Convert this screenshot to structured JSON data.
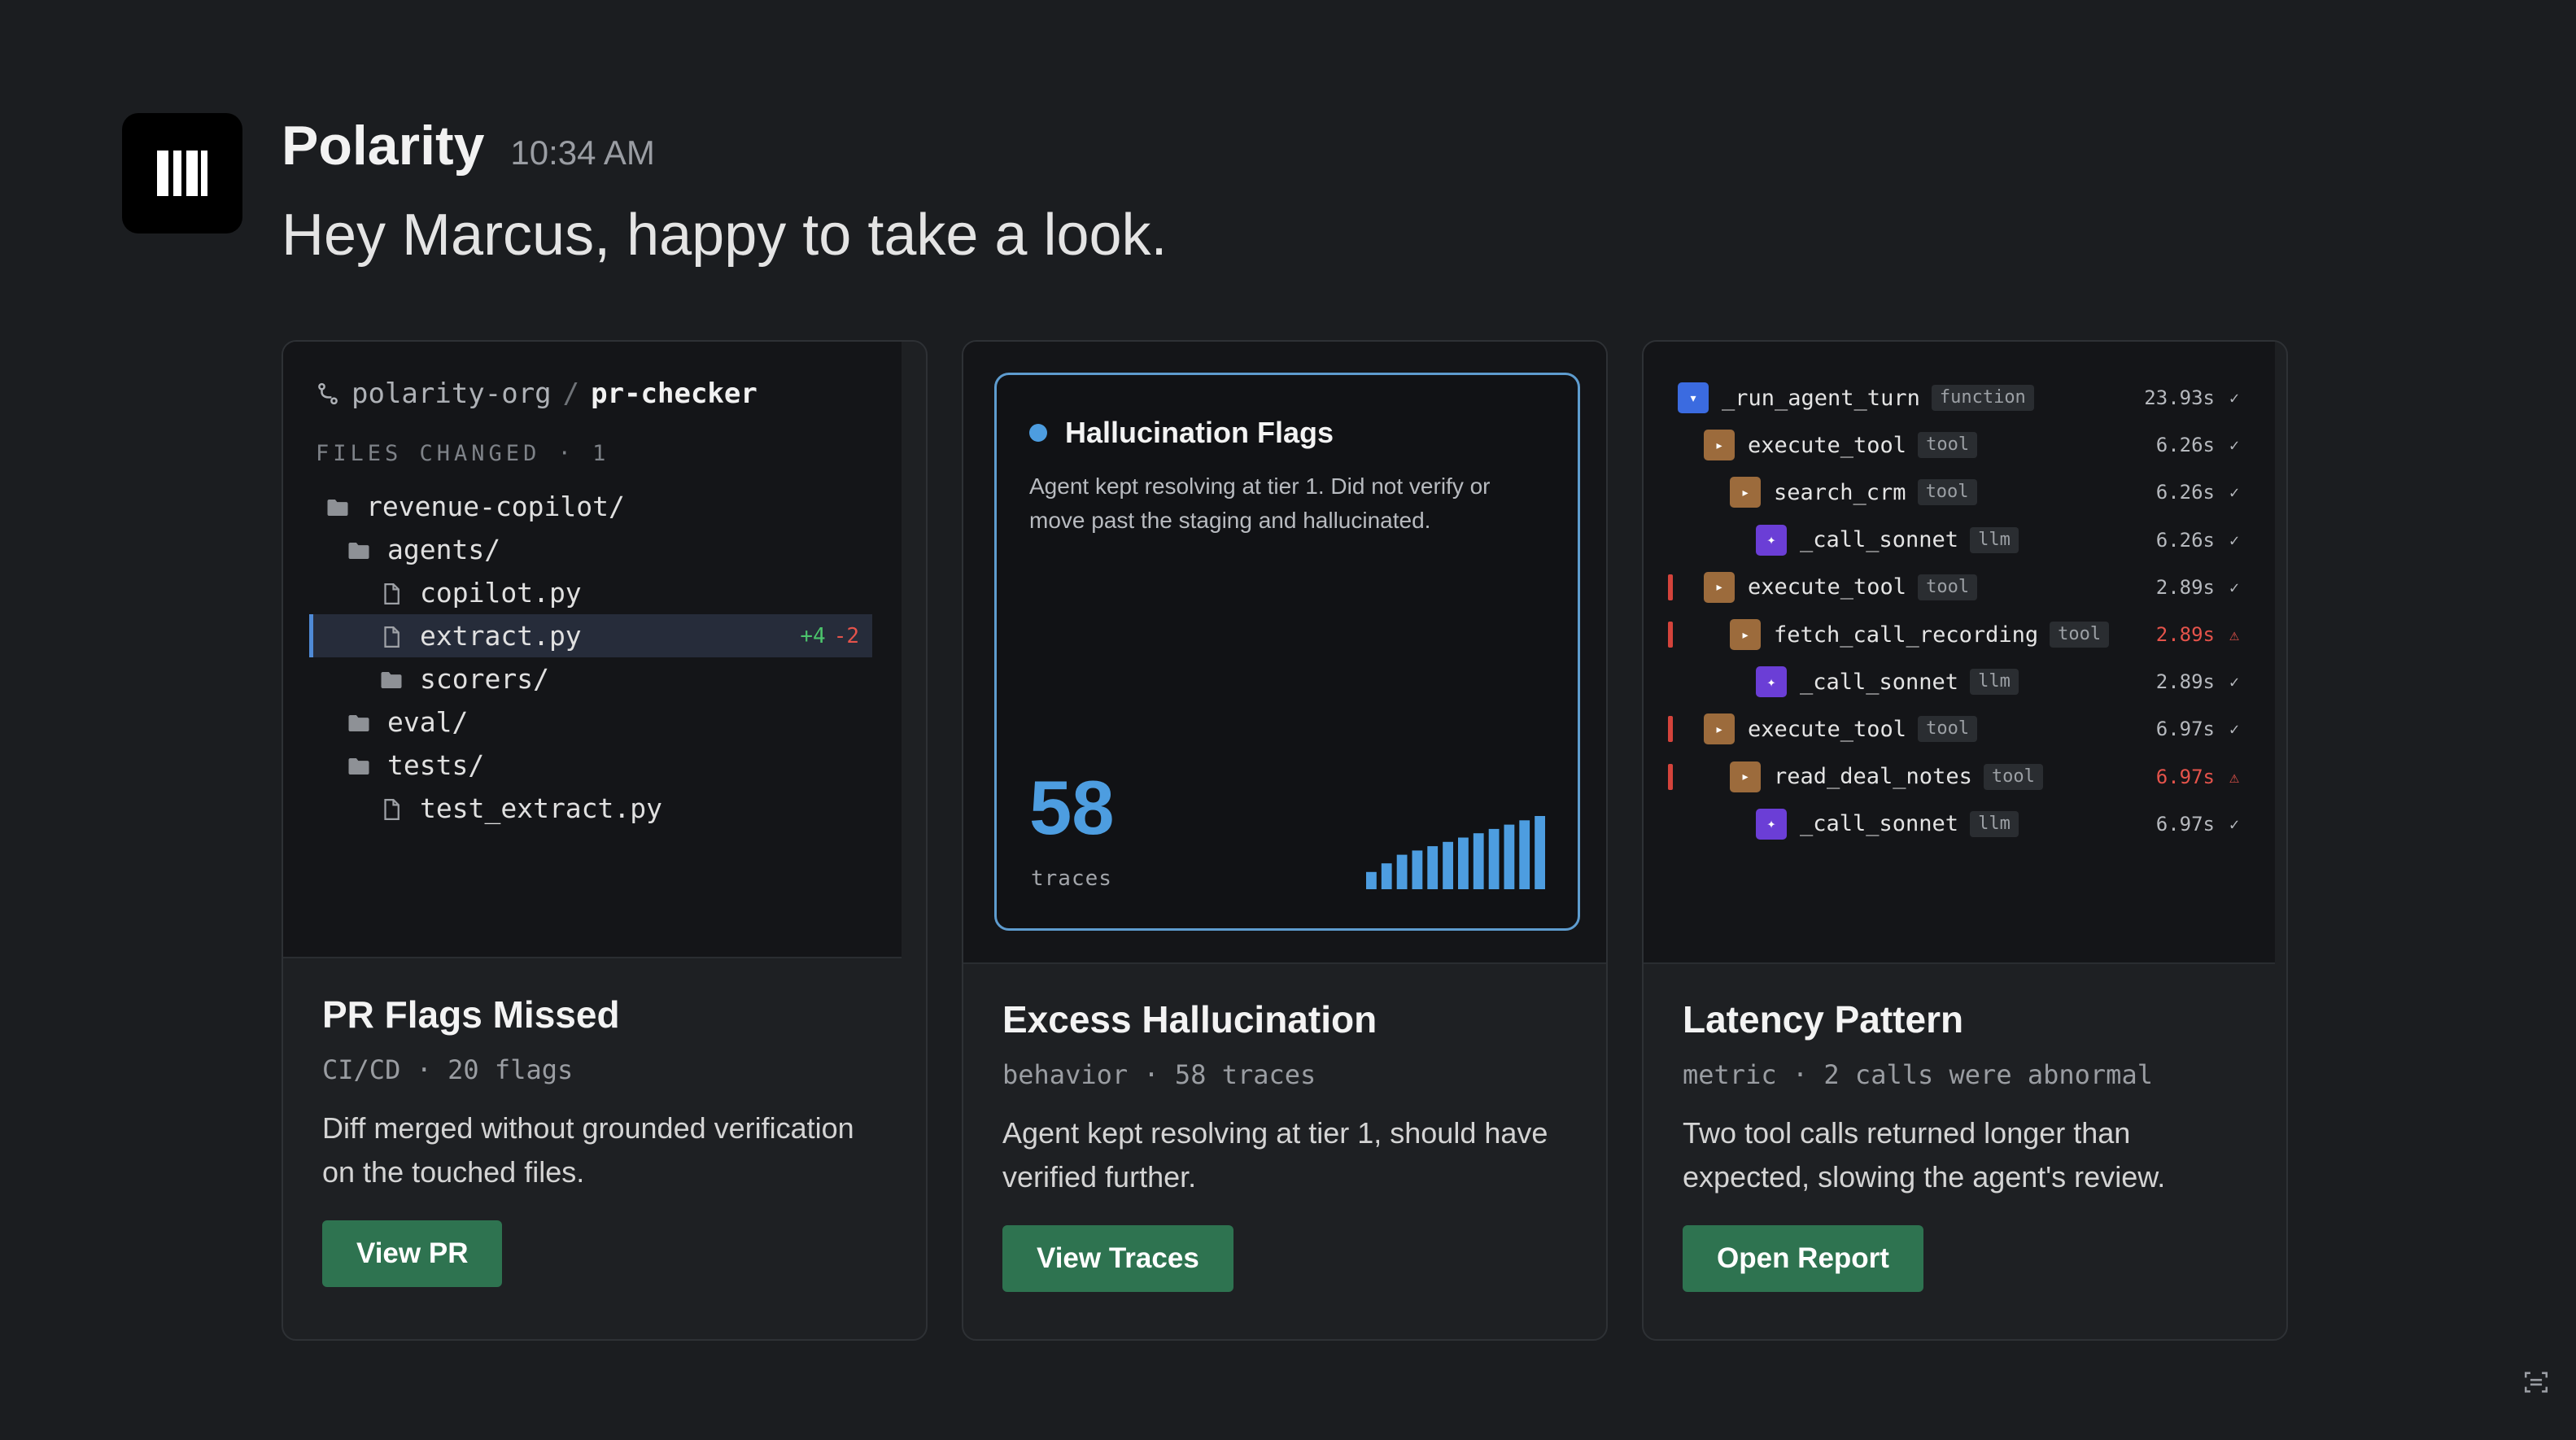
{
  "message": {
    "sender": "Polarity",
    "time": "10:34 AM",
    "text": "Hey Marcus, happy to take a look.",
    "avatar_icon": "polarity-logo-icon"
  },
  "cards": [
    {
      "preview": {
        "repo_org": "polarity-org",
        "repo_sep": "/",
        "repo_name": "pr-checker",
        "files_header": "FILES CHANGED · 1",
        "tree": [
          {
            "label": "revenue-copilot/",
            "type": "folder",
            "depth": 0
          },
          {
            "label": "agents/",
            "type": "folder",
            "depth": 1
          },
          {
            "label": "copilot.py",
            "type": "file",
            "depth": 2
          },
          {
            "label": "extract.py",
            "type": "file",
            "depth": 2,
            "selected": true,
            "additions": "+4",
            "deletions": "-2"
          },
          {
            "label": "scorers/",
            "type": "folder",
            "depth": 2
          },
          {
            "label": "eval/",
            "type": "folder",
            "depth": 1
          },
          {
            "label": "tests/",
            "type": "folder",
            "depth": 1
          },
          {
            "label": "test_extract.py",
            "type": "file",
            "depth": 2
          }
        ]
      },
      "title": "PR Flags Missed",
      "meta": "CI/CD · 20 flags",
      "description": "Diff merged without grounded verification on the touched files.",
      "button": "View PR"
    },
    {
      "preview": {
        "title": "Hallucination Flags",
        "description": "Agent kept resolving at tier 1. Did not verify or move past the staging and hallucinated.",
        "count": "58",
        "unit": "traces",
        "spark_values": [
          2,
          3,
          4,
          4.5,
          5,
          5.5,
          6,
          6.5,
          7,
          7.5,
          8,
          8.5
        ],
        "accent": "#4d9de0"
      },
      "title": "Excess Hallucination",
      "meta": "behavior · 58 traces",
      "description": "Agent kept resolving at tier 1, should have verified further.",
      "button": "View Traces"
    },
    {
      "preview": {
        "spans": [
          {
            "name": "_run_agent_turn",
            "tag": "function",
            "kind": "fn",
            "depth": 0,
            "duration": "23.93s",
            "status": "✓",
            "error": false,
            "flag": false
          },
          {
            "name": "execute_tool",
            "tag": "tool",
            "kind": "tool",
            "depth": 1,
            "duration": "6.26s",
            "status": "✓",
            "error": false,
            "flag": false
          },
          {
            "name": "search_crm",
            "tag": "tool",
            "kind": "tool",
            "depth": 2,
            "duration": "6.26s",
            "status": "✓",
            "error": false,
            "flag": false
          },
          {
            "name": "_call_sonnet",
            "tag": "llm",
            "kind": "llm",
            "depth": 3,
            "duration": "6.26s",
            "status": "✓",
            "error": false,
            "flag": false
          },
          {
            "name": "execute_tool",
            "tag": "tool",
            "kind": "tool",
            "depth": 1,
            "duration": "2.89s",
            "status": "✓",
            "error": false,
            "flag": true
          },
          {
            "name": "fetch_call_recording",
            "tag": "tool",
            "kind": "tool",
            "depth": 2,
            "duration": "2.89s",
            "status": "⚠",
            "error": true,
            "flag": true
          },
          {
            "name": "_call_sonnet",
            "tag": "llm",
            "kind": "llm",
            "depth": 3,
            "duration": "2.89s",
            "status": "✓",
            "error": false,
            "flag": false
          },
          {
            "name": "execute_tool",
            "tag": "tool",
            "kind": "tool",
            "depth": 1,
            "duration": "6.97s",
            "status": "✓",
            "error": false,
            "flag": true
          },
          {
            "name": "read_deal_notes",
            "tag": "tool",
            "kind": "tool",
            "depth": 2,
            "duration": "6.97s",
            "status": "⚠",
            "error": true,
            "flag": true
          },
          {
            "name": "_call_sonnet",
            "tag": "llm",
            "kind": "llm",
            "depth": 3,
            "duration": "6.97s",
            "status": "✓",
            "error": false,
            "flag": false
          }
        ]
      },
      "title": "Latency Pattern",
      "meta": "metric · 2 calls were abnormal",
      "description": "Two tool calls returned longer than expected, slowing the agent's review.",
      "button": "Open Report"
    }
  ],
  "colors": {
    "background": "#1b1d20",
    "button": "#2e7350",
    "accent_blue": "#4d9de0",
    "error_red": "#e5534b",
    "diff_green": "#4cc46c"
  },
  "corner_icon": "screenshot-scan-icon"
}
